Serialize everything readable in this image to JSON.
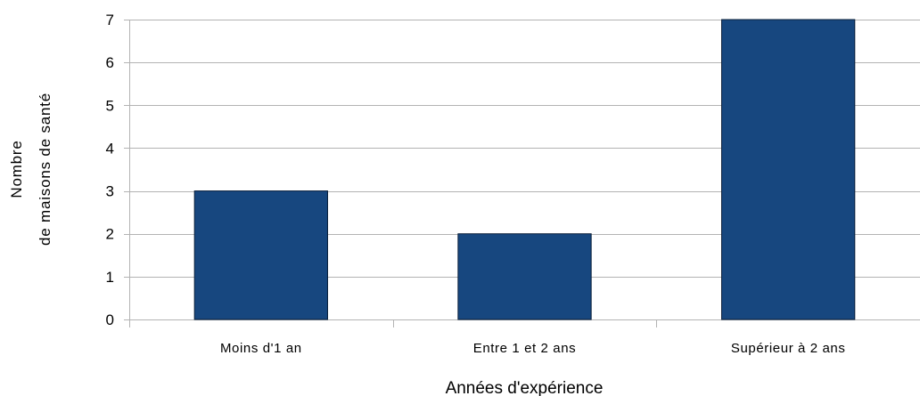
{
  "chart_data": {
    "type": "bar",
    "categories": [
      "Moins d'1 an",
      "Entre 1 et 2 ans",
      "Supérieur à 2 ans"
    ],
    "values": [
      3,
      2,
      7
    ],
    "xlabel": "Années d'expérience",
    "ylabel_lines": [
      "Nombre",
      "de maisons de santé"
    ],
    "ylim": [
      0,
      7
    ],
    "yticks": [
      0,
      1,
      2,
      3,
      4,
      5,
      6,
      7
    ],
    "grid": true,
    "legend": "none",
    "colors": {
      "bar_fill": "#17477f",
      "bar_stroke": "#0a1f3a",
      "grid": "#b3b3b3",
      "axis": "#b3b3b3"
    }
  }
}
